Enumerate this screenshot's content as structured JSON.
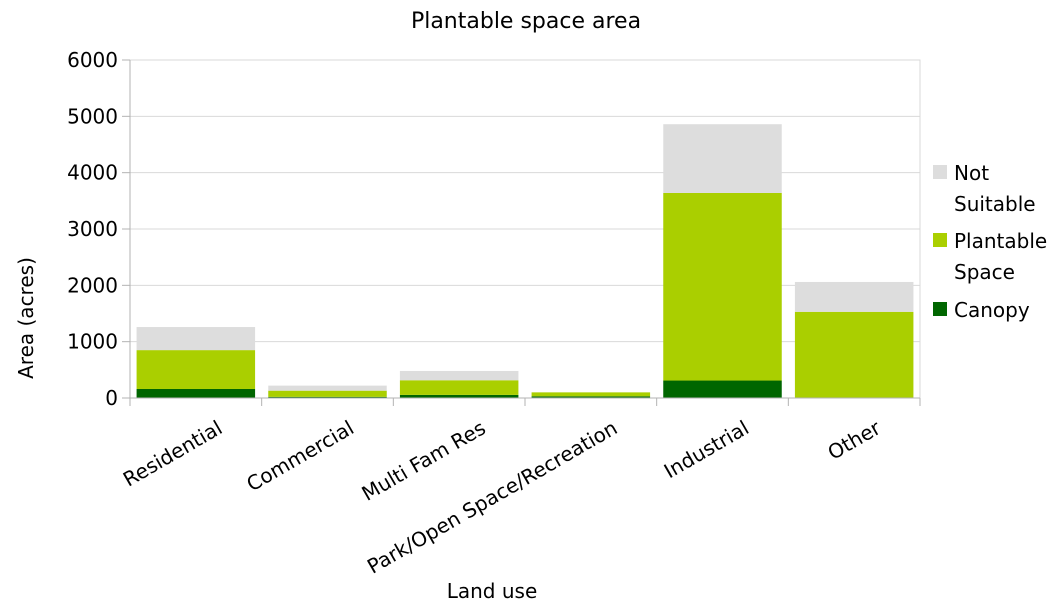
{
  "chart_data": {
    "type": "bar",
    "stacked": true,
    "title": "Plantable space area",
    "xlabel": "Land use",
    "ylabel": "Area (acres)",
    "ylim": [
      0,
      6000
    ],
    "yticks": [
      0,
      1000,
      2000,
      3000,
      4000,
      5000,
      6000
    ],
    "grid": true,
    "legend_position": "right",
    "categories": [
      "Residential",
      "Commercial",
      "Multi Fam Res",
      "Park/Open Space/Recreation",
      "Industrial",
      "Other"
    ],
    "series": [
      {
        "name": "Canopy",
        "color": "#006600",
        "values": [
          160,
          20,
          55,
          30,
          310,
          0
        ]
      },
      {
        "name": "Plantable Space",
        "color": "#aacf00",
        "values": [
          690,
          110,
          260,
          70,
          3330,
          1530
        ]
      },
      {
        "name": "Not Suitable",
        "color": "#dddddd",
        "values": [
          410,
          90,
          165,
          0,
          1220,
          530
        ]
      }
    ],
    "legend": [
      {
        "lines": [
          "Not",
          "Suitable"
        ],
        "color": "#dddddd"
      },
      {
        "lines": [
          "Plantable",
          "Space"
        ],
        "color": "#aacf00"
      },
      {
        "lines": [
          "Canopy"
        ],
        "color": "#006600"
      }
    ]
  }
}
